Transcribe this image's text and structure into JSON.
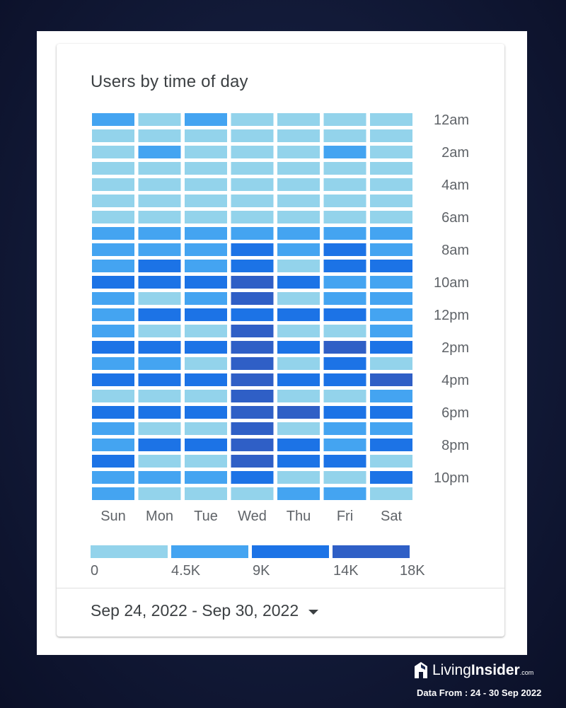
{
  "card": {
    "title": "Users by time of day",
    "date_range": "Sep 24, 2022 - Sep 30, 2022"
  },
  "chart_data": {
    "type": "heatmap",
    "title": "Users by time of day",
    "x_categories": [
      "Sun",
      "Mon",
      "Tue",
      "Wed",
      "Thu",
      "Fri",
      "Sat"
    ],
    "y_labels_shown": [
      "12am",
      "2am",
      "4am",
      "6am",
      "8am",
      "10am",
      "12pm",
      "2pm",
      "4pm",
      "6pm",
      "8pm",
      "10pm"
    ],
    "hours": [
      "12am",
      "1am",
      "2am",
      "3am",
      "4am",
      "5am",
      "6am",
      "7am",
      "8am",
      "9am",
      "10am",
      "11am",
      "12pm",
      "1pm",
      "2pm",
      "3pm",
      "4pm",
      "5pm",
      "6pm",
      "7pm",
      "8pm",
      "9pm",
      "10pm",
      "11pm"
    ],
    "scale": {
      "ticks": [
        "0",
        "4.5K",
        "9K",
        "14K",
        "18K"
      ],
      "bins": [
        {
          "range": "0 - 4.5K",
          "color": "#93d3eb"
        },
        {
          "range": "4.5K - 9K",
          "color": "#44a4f1"
        },
        {
          "range": "9K - 14K",
          "color": "#1c73e6"
        },
        {
          "range": "14K - 18K",
          "color": "#2f5fc6"
        }
      ]
    },
    "bin_matrix_by_hour": [
      [
        1,
        0,
        1,
        0,
        0,
        0,
        0
      ],
      [
        0,
        0,
        0,
        0,
        0,
        0,
        0
      ],
      [
        0,
        1,
        0,
        0,
        0,
        1,
        0
      ],
      [
        0,
        0,
        0,
        0,
        0,
        0,
        0
      ],
      [
        0,
        0,
        0,
        0,
        0,
        0,
        0
      ],
      [
        0,
        0,
        0,
        0,
        0,
        0,
        0
      ],
      [
        0,
        0,
        0,
        0,
        0,
        0,
        0
      ],
      [
        1,
        1,
        1,
        1,
        1,
        1,
        1
      ],
      [
        1,
        1,
        1,
        2,
        1,
        2,
        1
      ],
      [
        1,
        2,
        1,
        2,
        0,
        2,
        2
      ],
      [
        2,
        2,
        2,
        3,
        2,
        1,
        1
      ],
      [
        1,
        0,
        1,
        3,
        0,
        1,
        1
      ],
      [
        1,
        2,
        2,
        2,
        2,
        2,
        1
      ],
      [
        1,
        0,
        0,
        3,
        0,
        0,
        1
      ],
      [
        2,
        2,
        2,
        3,
        2,
        3,
        2
      ],
      [
        1,
        1,
        0,
        3,
        0,
        2,
        0
      ],
      [
        2,
        2,
        2,
        3,
        2,
        2,
        3
      ],
      [
        0,
        0,
        0,
        3,
        0,
        0,
        1
      ],
      [
        2,
        2,
        2,
        3,
        3,
        2,
        2
      ],
      [
        1,
        0,
        0,
        3,
        0,
        1,
        1
      ],
      [
        1,
        2,
        2,
        3,
        2,
        1,
        2
      ],
      [
        2,
        0,
        0,
        3,
        2,
        2,
        0
      ],
      [
        1,
        1,
        1,
        2,
        0,
        0,
        2
      ],
      [
        1,
        0,
        0,
        0,
        1,
        1,
        0
      ]
    ]
  },
  "branding": {
    "name_light": "Living",
    "name_bold": "Insider",
    "name_suffix": ".com",
    "source": "Data From : 24 - 30 Sep 2022"
  }
}
